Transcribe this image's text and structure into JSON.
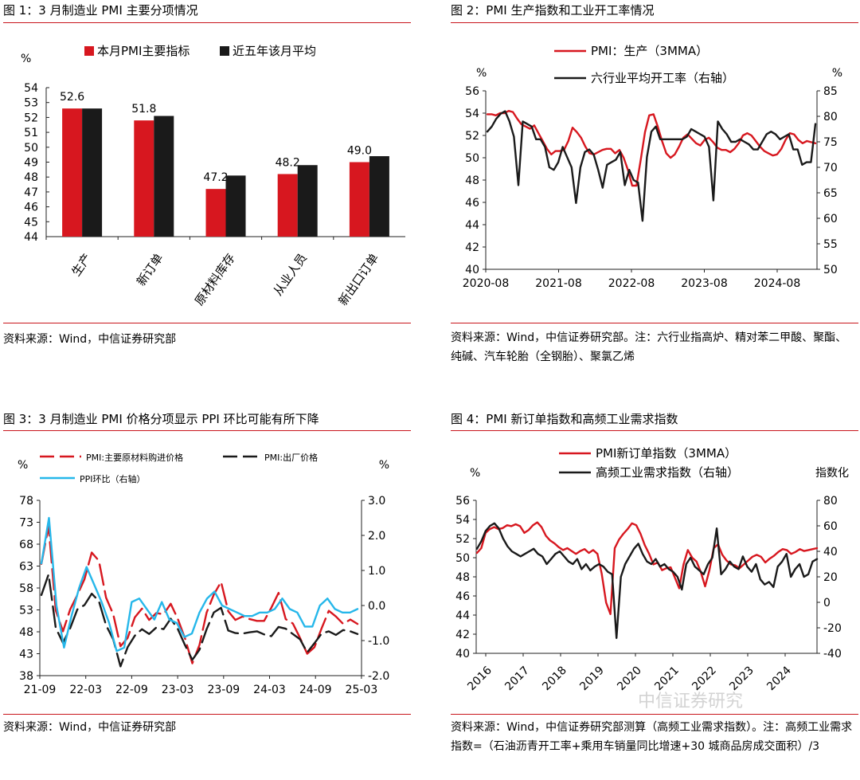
{
  "panels": [
    {
      "fig_title": "图 1：3 月制造业 PMI 主要分项情况",
      "source": "资料来源：Wind，中信证券研究部",
      "chart_data": {
        "type": "bar",
        "unit": "%",
        "categories": [
          "生产",
          "新订单",
          "原材料库存",
          "从业人员",
          "新出口订单"
        ],
        "series": [
          {
            "name": "本月PMI主要指标",
            "color": "#d7171f",
            "values": [
              52.6,
              51.8,
              47.2,
              48.2,
              49.0
            ],
            "labels": [
              "52.6",
              "51.8",
              "47.2",
              "48.2",
              "49.0"
            ]
          },
          {
            "name": "近五年该月平均",
            "color": "#1a1a1a",
            "values": [
              52.6,
              52.1,
              48.1,
              48.8,
              49.4
            ]
          }
        ],
        "ylim": [
          44,
          54
        ],
        "yticks": [
          "44",
          "45",
          "46",
          "47",
          "48",
          "49",
          "50",
          "51",
          "52",
          "53",
          "54"
        ]
      }
    },
    {
      "fig_title": "图 2：PMI 生产指数和工业开工率情况",
      "source": "资料来源：Wind，中信证券研究部。注：六行业指高炉、精对苯二甲酸、聚酯、纯碱、汽车轮胎（全钢胎）、聚氯乙烯",
      "chart_data": {
        "type": "line",
        "left_unit": "%",
        "right_unit": "%",
        "ylim": [
          40,
          56
        ],
        "yticks": [
          "40",
          "42",
          "44",
          "46",
          "48",
          "50",
          "52",
          "54",
          "56"
        ],
        "y2lim": [
          50,
          85
        ],
        "y2ticks": [
          "50",
          "55",
          "60",
          "65",
          "70",
          "75",
          "80",
          "85"
        ],
        "xticks": [
          "2020-08",
          "2021-08",
          "2022-08",
          "2023-08",
          "2024-08"
        ],
        "series": [
          {
            "name": "PMI：生产（3MMA）",
            "axis": "left",
            "color": "#d7171f",
            "values": [
              53.9,
              53.9,
              53.8,
              54.0,
              54.0,
              54.2,
              54.1,
              53.5,
              53.0,
              52.8,
              52.6,
              52.9,
              52.2,
              51.5,
              50.8,
              50.3,
              50.6,
              50.6,
              50.7,
              51.5,
              52.7,
              52.3,
              51.8,
              51.0,
              50.4,
              50.3,
              50.5,
              50.7,
              50.8,
              50.8,
              50.4,
              50.7,
              50.0,
              48.9,
              47.5,
              47.5,
              49.8,
              52.3,
              53.8,
              53.9,
              52.8,
              51.5,
              50.4,
              50.0,
              50.3,
              51.0,
              51.8,
              52.1,
              51.7,
              51.3,
              51.1,
              51.6,
              51.8,
              51.4,
              50.9,
              50.7,
              50.7,
              50.5,
              50.8,
              51.3,
              52.0,
              52.2,
              52.0,
              51.5,
              51.0,
              50.6,
              50.4,
              50.2,
              50.3,
              50.8,
              51.6,
              52.2,
              52.1,
              51.6,
              51.3,
              51.5,
              51.4,
              51.3
            ]
          },
          {
            "name": "六行业平均开工率（右轴）",
            "axis": "right",
            "color": "#1a1a1a",
            "values": [
              77.0,
              78.0,
              79.5,
              80.5,
              81.0,
              79.0,
              76.0,
              66.5,
              79.0,
              78.5,
              78.0,
              75.5,
              75.5,
              74.0,
              70.0,
              69.5,
              71.0,
              74.0,
              72.0,
              70.0,
              63.0,
              70.0,
              73.0,
              73.5,
              72.5,
              69.5,
              66.0,
              70.5,
              71.0,
              71.5,
              73.0,
              66.5,
              69.5,
              67.5,
              67.0,
              59.5,
              72.0,
              77.0,
              78.0,
              75.5,
              75.5,
              75.5,
              75.5,
              75.5,
              75.5,
              76.0,
              77.5,
              77.0,
              76.5,
              76.0,
              74.0,
              63.5,
              79.0,
              77.5,
              76.5,
              75.0,
              75.0,
              75.5,
              75.0,
              74.5,
              73.5,
              73.5,
              75.0,
              76.5,
              77.0,
              76.5,
              75.5,
              76.0,
              76.5,
              73.5,
              73.5,
              70.5,
              71.0,
              71.0,
              78.5
            ]
          }
        ]
      }
    },
    {
      "fig_title": "图 3：3 月制造业 PMI 价格分项显示 PPI 环比可能有所下降",
      "source": "资料来源：Wind，中信证券研究部",
      "chart_data": {
        "type": "line",
        "left_unit": "%",
        "right_unit": "%",
        "ylim": [
          38,
          78
        ],
        "yticks": [
          "38",
          "43",
          "48",
          "53",
          "58",
          "63",
          "68",
          "73",
          "78"
        ],
        "y2lim": [
          -2.0,
          3.0
        ],
        "y2ticks": [
          "-2.0",
          "-1.0",
          "0.0",
          "1.0",
          "2.0",
          "3.0"
        ],
        "xticks": [
          "21-09",
          "22-03",
          "22-09",
          "23-03",
          "23-09",
          "24-03",
          "24-09",
          "25-03"
        ],
        "series": [
          {
            "name": "PMI:主要原材料购进价格",
            "axis": "left",
            "color": "#d7171f",
            "dashed": true,
            "values": [
              63.5,
              72.1,
              52.9,
              48.1,
              53.1,
              56.4,
              60.0,
              66.1,
              64.2,
              55.8,
              52.0,
              44.7,
              46.6,
              51.3,
              53.3,
              50.7,
              52.3,
              52.0,
              54.4,
              50.9,
              46.4,
              40.8,
              45.0,
              52.4,
              56.5,
              59.4,
              52.7,
              50.7,
              51.5,
              50.9,
              50.5,
              50.5,
              53.5,
              56.9,
              50.9,
              49.9,
              46.6,
              43.0,
              44.5,
              48.8,
              52.8,
              51.5,
              49.8,
              50.8,
              49.8
            ]
          },
          {
            "name": "PMI:出厂价格",
            "axis": "left",
            "color": "#1a1a1a",
            "dashed": true,
            "values": [
              56.4,
              61.1,
              48.9,
              45.5,
              48.8,
              53.1,
              54.1,
              56.7,
              55.0,
              49.5,
              46.3,
              40.1,
              44.5,
              47.1,
              48.6,
              47.5,
              49.0,
              48.6,
              51.0,
              48.6,
              44.9,
              41.6,
              43.9,
              48.6,
              52.4,
              53.5,
              48.3,
              47.7,
              47.6,
              47.9,
              48.1,
              47.4,
              47.0,
              49.1,
              48.7,
              47.5,
              46.3,
              43.3,
              45.4,
              47.6,
              48.1,
              47.3,
              48.4,
              48.1,
              47.5
            ]
          },
          {
            "name": "PPI环比（右轴）",
            "axis": "right",
            "color": "#26b7ea",
            "dashed": false,
            "values": [
              1.2,
              2.5,
              0.0,
              -1.2,
              -0.3,
              0.5,
              1.1,
              0.6,
              0.1,
              -0.5,
              -1.3,
              -1.2,
              0.1,
              0.2,
              -0.1,
              -0.4,
              0.1,
              -0.4,
              -0.5,
              -0.9,
              -0.8,
              -0.2,
              0.2,
              0.4,
              0.0,
              -0.1,
              -0.2,
              -0.3,
              -0.3,
              -0.2,
              -0.2,
              -0.1,
              0.2,
              -0.1,
              -0.2,
              -0.6,
              -0.6,
              0.0,
              0.2,
              -0.1,
              -0.2,
              -0.2,
              -0.1
            ]
          }
        ]
      }
    },
    {
      "fig_title": "图 4：PMI 新订单指数和高频工业需求指数",
      "source": "资料来源：Wind，中信证券研究部测算（高频工业需求指数）。注：高频工业需求指数=（石油沥青开工率+乘用车销量同比增速+30 城商品房成交面积）/3",
      "watermark": "中信证券研究",
      "chart_data": {
        "type": "line",
        "left_unit": "%",
        "right_unit": "指数化",
        "ylim": [
          40,
          56
        ],
        "yticks": [
          "40",
          "42",
          "44",
          "46",
          "48",
          "50",
          "52",
          "54",
          "56"
        ],
        "y2lim": [
          -40,
          80
        ],
        "y2ticks": [
          "-40",
          "-20",
          "0",
          "20",
          "40",
          "60",
          "80"
        ],
        "xticks": [
          "2016",
          "2017",
          "2018",
          "2019",
          "2020",
          "2021",
          "2022",
          "2023",
          "2024"
        ],
        "series": [
          {
            "name": "PMI新订单指数（3MMA）",
            "axis": "left",
            "color": "#d7171f",
            "values": [
              50.5,
              51.0,
              52.6,
              53.0,
              53.2,
              53.0,
              53.1,
              53.4,
              53.3,
              53.5,
              53.3,
              52.6,
              52.9,
              53.4,
              53.7,
              53.2,
              52.3,
              51.8,
              51.5,
              51.1,
              50.8,
              51.0,
              50.7,
              50.4,
              50.7,
              50.9,
              50.5,
              50.8,
              50.4,
              48.3,
              45.3,
              44.1,
              51.0,
              51.9,
              52.5,
              53.0,
              53.6,
              53.4,
              52.5,
              51.3,
              50.4,
              49.3,
              49.5,
              48.7,
              48.9,
              49.0,
              47.9,
              46.8,
              49.3,
              50.8,
              50.0,
              49.6,
              48.5,
              47.0,
              48.7,
              51.0,
              51.4,
              50.3,
              49.7,
              49.3,
              49.2,
              48.9,
              49.3,
              49.7,
              50.1,
              50.3,
              50.1,
              49.5,
              49.9,
              50.2,
              50.6,
              50.9,
              50.8,
              50.4,
              50.6,
              50.9,
              50.7,
              50.8,
              50.9,
              51.0
            ]
          },
          {
            "name": "高频工业需求指数（右轴）",
            "axis": "right",
            "color": "#1a1a1a",
            "values": [
              42,
              48,
              56,
              60,
              62,
              58,
              50,
              44,
              40,
              38,
              36,
              38,
              40,
              42,
              38,
              36,
              30,
              34,
              38,
              40,
              36,
              32,
              30,
              34,
              26,
              30,
              25,
              28,
              30,
              28,
              24,
              22,
              -28,
              20,
              30,
              36,
              42,
              46,
              38,
              32,
              30,
              34,
              28,
              30,
              26,
              24,
              20,
              10,
              30,
              35,
              28,
              25,
              22,
              30,
              35,
              58,
              22,
              26,
              32,
              28,
              26,
              36,
              28,
              24,
              30,
              18,
              14,
              16,
              12,
              28,
              32,
              38,
              20,
              26,
              30,
              20,
              22,
              32,
              34
            ]
          }
        ]
      }
    }
  ]
}
